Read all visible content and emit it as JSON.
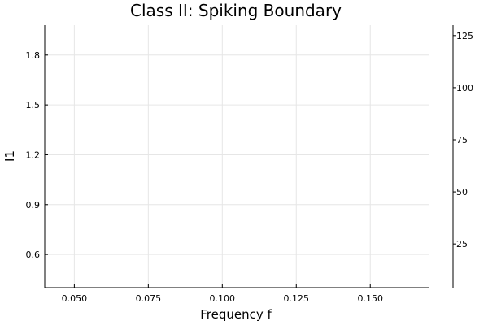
{
  "chart_data": {
    "type": "line",
    "title": "Class II: Spiking Boundary",
    "xlabel": "Frequency f",
    "ylabel": "I1",
    "xlim": [
      0.04,
      0.17
    ],
    "ylim": [
      0.4,
      1.98
    ],
    "xticks": [
      0.05,
      0.075,
      0.1,
      0.125,
      0.15
    ],
    "xtick_labels": [
      "0.050",
      "0.075",
      "0.100",
      "0.125",
      "0.150"
    ],
    "yticks": [
      0.6,
      0.9,
      1.2,
      1.5,
      1.8
    ],
    "ytick_labels": [
      "0.6",
      "0.9",
      "1.2",
      "1.5",
      "1.8"
    ],
    "y2lim": [
      4,
      130
    ],
    "y2ticks": [
      25,
      50,
      75,
      100,
      125
    ],
    "y2tick_labels": [
      "25",
      "50",
      "75",
      "100",
      "125"
    ],
    "grid": true,
    "legend": "none",
    "series": []
  }
}
